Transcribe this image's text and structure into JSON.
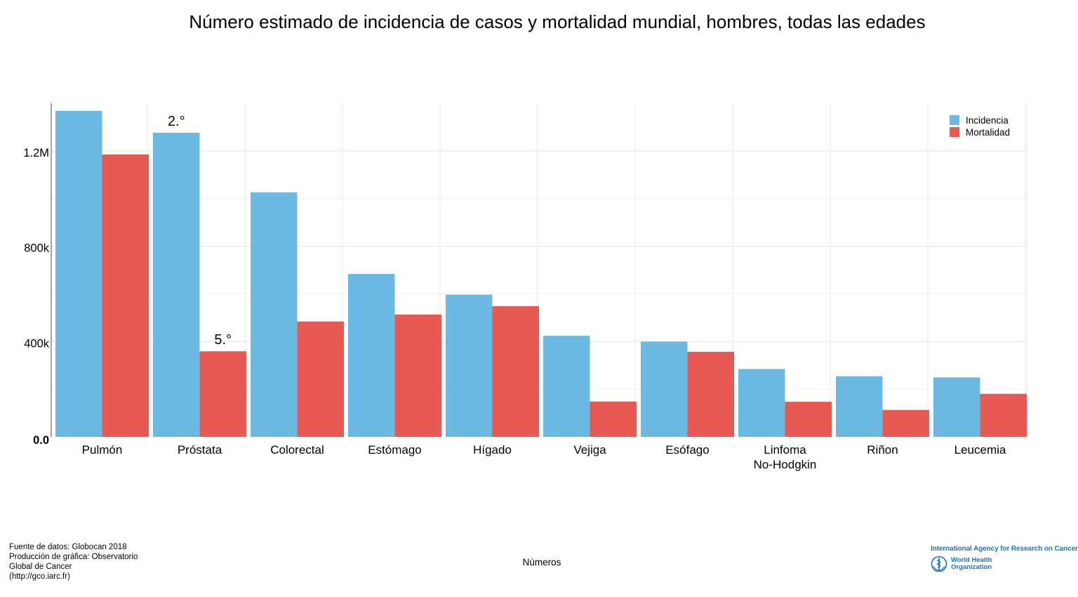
{
  "chart_data": {
    "type": "bar",
    "title": "Número estimado de incidencia de casos y mortalidad mundial, hombres, todas las edades",
    "xlabel": "Números",
    "ylabel": "",
    "categories": [
      "Pulmón",
      "Próstata",
      "Colorectal",
      "Estómago",
      "Hígado",
      "Vejiga",
      "Esófago",
      "Linfoma\nNo-Hodgkin",
      "Riñon",
      "Leucemia"
    ],
    "series": [
      {
        "name": "Incidencia",
        "color": "#6cb9e4",
        "values": [
          1368524,
          1276106,
          1026215,
          683754,
          596574,
          424082,
          399699,
          284713,
          254507,
          249454
        ]
      },
      {
        "name": "Mortalidad",
        "color": "#e65a53",
        "values": [
          1184947,
          358989,
          484224,
          513555,
          548375,
          148270,
          357190,
          147102,
          113052,
          180669
        ]
      }
    ],
    "yticks": [
      {
        "value": 0,
        "label": "0.0"
      },
      {
        "value": 400000,
        "label": "400k"
      },
      {
        "value": 800000,
        "label": "800k"
      },
      {
        "value": 1200000,
        "label": "1.2M"
      }
    ],
    "ylim": [
      0,
      1400000
    ],
    "annotations": [
      {
        "series": 0,
        "category": 1,
        "text": "2.°"
      },
      {
        "series": 1,
        "category": 1,
        "text": "5.°"
      }
    ],
    "legend_position": "top-right",
    "grid": true
  },
  "source_lines": [
    "Fuente de datos: Globocan 2018",
    "Producción de gráfica: Observatorio",
    "Global de Cancer",
    "(http://gco.iarc.fr)"
  ],
  "logos": {
    "iarc": "International Agency for Research on Cancer",
    "who_line1": "World Health",
    "who_line2": "Organization"
  }
}
